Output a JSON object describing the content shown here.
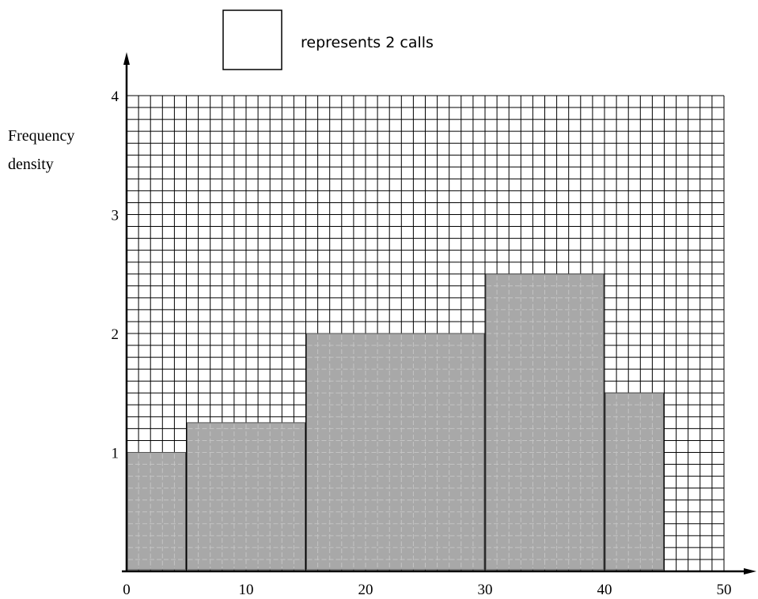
{
  "legend": {
    "text": "represents 2 calls"
  },
  "chart_data": {
    "type": "histogram",
    "ylabel_lines": [
      "Frequency",
      "density"
    ],
    "xlabel": "",
    "xlim": [
      0,
      50
    ],
    "ylim": [
      0,
      4
    ],
    "x_ticks": [
      "0",
      "10",
      "20",
      "30",
      "40",
      "50"
    ],
    "y_ticks": [
      "1",
      "2",
      "3",
      "4"
    ],
    "grid": true,
    "legend_position": "top-center",
    "bars": [
      {
        "x_start": 0,
        "x_end": 5,
        "frequency_density": 1.0
      },
      {
        "x_start": 5,
        "x_end": 15,
        "frequency_density": 1.25
      },
      {
        "x_start": 15,
        "x_end": 30,
        "frequency_density": 2.0
      },
      {
        "x_start": 30,
        "x_end": 40,
        "frequency_density": 2.5
      },
      {
        "x_start": 40,
        "x_end": 45,
        "frequency_density": 1.5
      }
    ],
    "colors": {
      "bar_fill": "#a8a8a8",
      "grid": "#000000",
      "axis": "#000000"
    }
  }
}
